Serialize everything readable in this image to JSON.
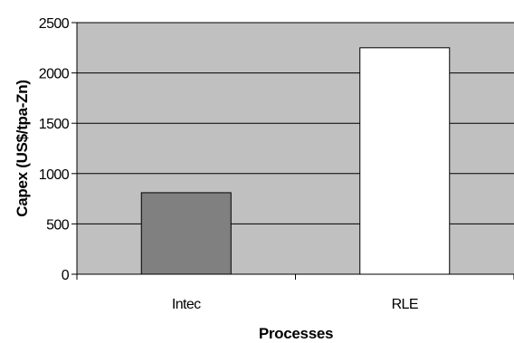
{
  "chart_data": {
    "type": "bar",
    "title": "",
    "xlabel": "Processes",
    "ylabel": "Capex (US$/tpa-Zn)",
    "categories": [
      "Intec",
      "RLE"
    ],
    "values": [
      810,
      2250
    ],
    "ylim": [
      0,
      2500
    ],
    "yticks": [
      0,
      500,
      1000,
      1500,
      2000,
      2500
    ],
    "grid": true,
    "legend": "none",
    "colors": {
      "plot_background": "#c0c0c0",
      "gridline": "#000000",
      "bars": [
        "#808080",
        "#ffffff"
      ],
      "bar_outline": "#000000"
    }
  }
}
